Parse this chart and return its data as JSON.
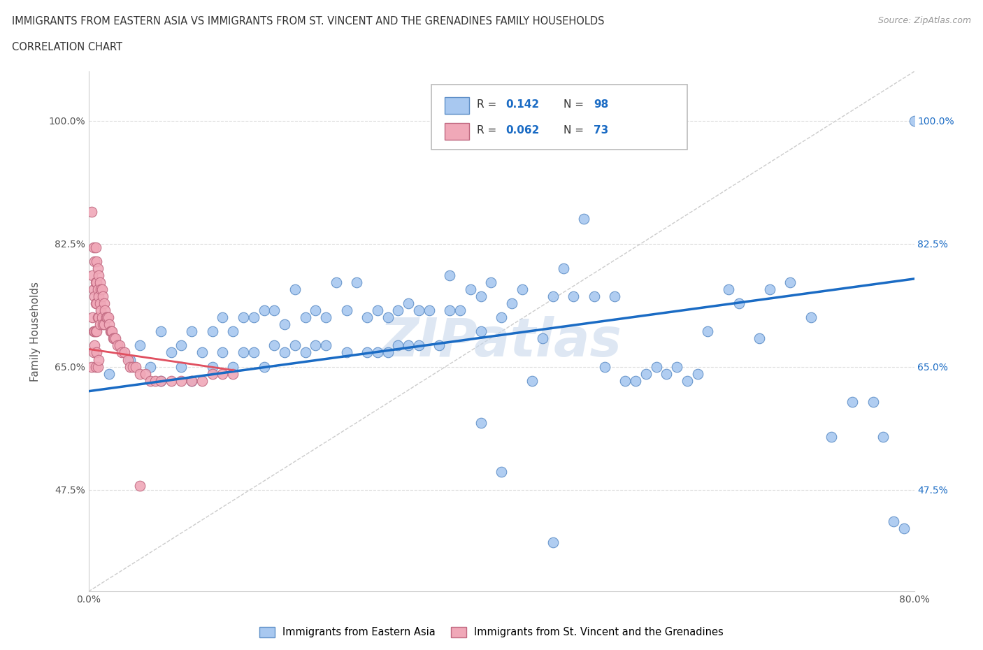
{
  "title_line1": "IMMIGRANTS FROM EASTERN ASIA VS IMMIGRANTS FROM ST. VINCENT AND THE GRENADINES FAMILY HOUSEHOLDS",
  "title_line2": "CORRELATION CHART",
  "source_text": "Source: ZipAtlas.com",
  "ylabel": "Family Households",
  "xlim": [
    0.0,
    0.8
  ],
  "ylim": [
    0.33,
    1.07
  ],
  "xtick_positions": [
    0.0,
    0.8
  ],
  "xtick_labels": [
    "0.0%",
    "80.0%"
  ],
  "ytick_positions": [
    0.475,
    0.65,
    0.825,
    1.0
  ],
  "ytick_labels": [
    "47.5%",
    "65.0%",
    "82.5%",
    "100.0%"
  ],
  "blue_line_color": "#1a6bc4",
  "pink_line_color": "#e05060",
  "blue_dot_color": "#a8c8f0",
  "blue_dot_edge": "#6090c8",
  "pink_dot_color": "#f0a8b8",
  "pink_dot_edge": "#c06880",
  "ref_line_color": "#cccccc",
  "grid_color": "#dddddd",
  "watermark_color": "#c8d8ec",
  "right_tick_color": "#1a6bc4",
  "legend_labels": [
    "Immigrants from Eastern Asia",
    "Immigrants from St. Vincent and the Grenadines"
  ],
  "blue_x": [
    0.02,
    0.04,
    0.05,
    0.06,
    0.07,
    0.07,
    0.08,
    0.09,
    0.09,
    0.1,
    0.1,
    0.11,
    0.12,
    0.12,
    0.13,
    0.13,
    0.14,
    0.14,
    0.15,
    0.15,
    0.16,
    0.16,
    0.17,
    0.17,
    0.18,
    0.18,
    0.19,
    0.19,
    0.2,
    0.2,
    0.21,
    0.21,
    0.22,
    0.22,
    0.23,
    0.23,
    0.24,
    0.25,
    0.25,
    0.26,
    0.27,
    0.27,
    0.28,
    0.28,
    0.29,
    0.29,
    0.3,
    0.3,
    0.31,
    0.31,
    0.32,
    0.32,
    0.33,
    0.34,
    0.35,
    0.35,
    0.36,
    0.37,
    0.38,
    0.38,
    0.39,
    0.4,
    0.41,
    0.42,
    0.43,
    0.44,
    0.45,
    0.46,
    0.47,
    0.48,
    0.49,
    0.5,
    0.51,
    0.52,
    0.53,
    0.54,
    0.55,
    0.56,
    0.57,
    0.58,
    0.59,
    0.6,
    0.62,
    0.63,
    0.65,
    0.66,
    0.68,
    0.7,
    0.72,
    0.74,
    0.76,
    0.77,
    0.78,
    0.79,
    0.38,
    0.4,
    0.45,
    0.8
  ],
  "blue_y": [
    0.64,
    0.66,
    0.68,
    0.65,
    0.63,
    0.7,
    0.67,
    0.65,
    0.68,
    0.63,
    0.7,
    0.67,
    0.65,
    0.7,
    0.67,
    0.72,
    0.65,
    0.7,
    0.67,
    0.72,
    0.67,
    0.72,
    0.65,
    0.73,
    0.68,
    0.73,
    0.67,
    0.71,
    0.68,
    0.76,
    0.67,
    0.72,
    0.68,
    0.73,
    0.68,
    0.72,
    0.77,
    0.67,
    0.73,
    0.77,
    0.67,
    0.72,
    0.67,
    0.73,
    0.67,
    0.72,
    0.68,
    0.73,
    0.68,
    0.74,
    0.68,
    0.73,
    0.73,
    0.68,
    0.73,
    0.78,
    0.73,
    0.76,
    0.7,
    0.75,
    0.77,
    0.72,
    0.74,
    0.76,
    0.63,
    0.69,
    0.75,
    0.79,
    0.75,
    0.86,
    0.75,
    0.65,
    0.75,
    0.63,
    0.63,
    0.64,
    0.65,
    0.64,
    0.65,
    0.63,
    0.64,
    0.7,
    0.76,
    0.74,
    0.69,
    0.76,
    0.77,
    0.72,
    0.55,
    0.6,
    0.6,
    0.55,
    0.43,
    0.42,
    0.57,
    0.5,
    0.4,
    1.0
  ],
  "pink_x": [
    0.003,
    0.004,
    0.004,
    0.005,
    0.005,
    0.005,
    0.006,
    0.006,
    0.006,
    0.007,
    0.007,
    0.007,
    0.007,
    0.008,
    0.008,
    0.008,
    0.008,
    0.009,
    0.009,
    0.009,
    0.01,
    0.01,
    0.01,
    0.011,
    0.011,
    0.011,
    0.012,
    0.012,
    0.013,
    0.013,
    0.014,
    0.014,
    0.015,
    0.015,
    0.016,
    0.017,
    0.018,
    0.019,
    0.02,
    0.021,
    0.022,
    0.023,
    0.024,
    0.025,
    0.026,
    0.028,
    0.03,
    0.032,
    0.035,
    0.038,
    0.04,
    0.043,
    0.046,
    0.05,
    0.055,
    0.06,
    0.065,
    0.07,
    0.08,
    0.09,
    0.1,
    0.11,
    0.12,
    0.13,
    0.14,
    0.003,
    0.005,
    0.006,
    0.007,
    0.008,
    0.009,
    0.01,
    0.05
  ],
  "pink_y": [
    0.87,
    0.78,
    0.72,
    0.82,
    0.76,
    0.7,
    0.8,
    0.75,
    0.7,
    0.82,
    0.77,
    0.74,
    0.7,
    0.8,
    0.77,
    0.74,
    0.7,
    0.79,
    0.76,
    0.72,
    0.78,
    0.75,
    0.72,
    0.77,
    0.74,
    0.71,
    0.76,
    0.73,
    0.76,
    0.72,
    0.75,
    0.71,
    0.74,
    0.71,
    0.73,
    0.72,
    0.72,
    0.72,
    0.71,
    0.7,
    0.7,
    0.7,
    0.69,
    0.69,
    0.69,
    0.68,
    0.68,
    0.67,
    0.67,
    0.66,
    0.65,
    0.65,
    0.65,
    0.64,
    0.64,
    0.63,
    0.63,
    0.63,
    0.63,
    0.63,
    0.63,
    0.63,
    0.64,
    0.64,
    0.64,
    0.65,
    0.67,
    0.68,
    0.65,
    0.67,
    0.65,
    0.66,
    0.48
  ]
}
